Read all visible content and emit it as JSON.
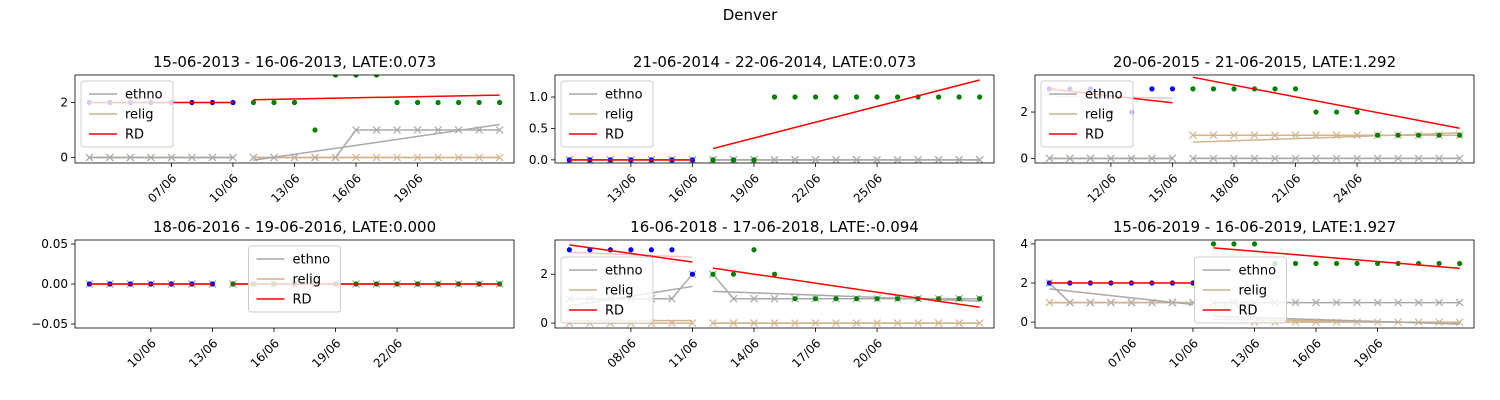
{
  "figure": {
    "title": "Denver"
  },
  "legend_labels": [
    "ethno",
    "relig",
    "RD"
  ],
  "colors": {
    "ethno": "#a9a9a9",
    "relig": "#d2b48c",
    "rd": "#ff0000",
    "pre_dot": "#0000ff",
    "post_dot": "#008000",
    "pink": "#ffc0cb"
  },
  "chart_data": [
    {
      "type": "line",
      "title": "15-06-2013 - 16-06-2013, LATE:0.073",
      "legend": "upper-left",
      "xlim": [
        2.3,
        23.7
      ],
      "ylim": [
        -0.2,
        3.0
      ],
      "x_ticks": [
        {
          "x": 7,
          "label": "07/06"
        },
        {
          "x": 10,
          "label": "10/06"
        },
        {
          "x": 13,
          "label": "13/06"
        },
        {
          "x": 16,
          "label": "16/06"
        },
        {
          "x": 19,
          "label": "19/06"
        }
      ],
      "y_ticks": [
        {
          "y": 0,
          "label": "0"
        },
        {
          "y": 2,
          "label": "2"
        }
      ],
      "x": [
        3,
        4,
        5,
        6,
        7,
        8,
        9,
        10,
        11,
        12,
        13,
        14,
        15,
        16,
        17,
        18,
        19,
        20,
        21,
        22,
        23
      ],
      "cutoff": 10.5,
      "outcome": [
        2,
        2,
        2,
        2,
        2,
        2,
        2,
        2,
        2,
        2,
        2,
        1,
        3,
        3,
        3,
        2,
        2,
        2,
        2,
        2,
        2
      ],
      "ethno": [
        0,
        0,
        0,
        0,
        0,
        0,
        0,
        0,
        0,
        0,
        0,
        0,
        0,
        1,
        1,
        1,
        1,
        1,
        1,
        1,
        1
      ],
      "relig": [
        0,
        0,
        0,
        0,
        0,
        0,
        0,
        0,
        0,
        0,
        0,
        0,
        0,
        0,
        0,
        0,
        0,
        0,
        0,
        0,
        0
      ],
      "rd_pre": [
        2,
        2
      ],
      "rd_post": [
        2.1,
        2.27
      ],
      "ethno_pre": [
        0,
        0
      ],
      "ethno_post": [
        -0.1,
        1.2
      ],
      "relig_pre": [
        0,
        0
      ],
      "relig_post": [
        0,
        0
      ],
      "pink_pre": [
        2.0,
        2.0
      ]
    },
    {
      "type": "line",
      "title": "21-06-2014 - 22-06-2014, LATE:0.073",
      "legend": "upper-left",
      "xlim": [
        9.3,
        30.7
      ],
      "ylim": [
        -0.05,
        1.35
      ],
      "x_ticks": [
        {
          "x": 13,
          "label": "13/06"
        },
        {
          "x": 16,
          "label": "16/06"
        },
        {
          "x": 19,
          "label": "19/06"
        },
        {
          "x": 22,
          "label": "22/06"
        },
        {
          "x": 25,
          "label": "25/06"
        }
      ],
      "y_ticks": [
        {
          "y": 0,
          "label": "0.0"
        },
        {
          "y": 0.5,
          "label": "0.5"
        },
        {
          "y": 1,
          "label": "1.0"
        }
      ],
      "x": [
        10,
        11,
        12,
        13,
        14,
        15,
        16,
        17,
        18,
        19,
        20,
        21,
        22,
        23,
        24,
        25,
        26,
        27,
        28,
        29,
        30
      ],
      "cutoff": 16.5,
      "outcome": [
        0,
        0,
        0,
        0,
        0,
        0,
        0,
        0,
        0,
        0,
        1,
        1,
        1,
        1,
        1,
        1,
        1,
        1,
        1,
        1,
        1
      ],
      "ethno": [
        0,
        0,
        0,
        0,
        0,
        0,
        0,
        0,
        0,
        0,
        0,
        0,
        0,
        0,
        0,
        0,
        0,
        0,
        0,
        0,
        0
      ],
      "relig": [
        0,
        0,
        0,
        0,
        0,
        0,
        0,
        0,
        0,
        0,
        0,
        0,
        0,
        0,
        0,
        0,
        0,
        0,
        0,
        0,
        0
      ],
      "rd_pre": [
        0,
        0
      ],
      "rd_post": [
        0.18,
        1.27
      ],
      "ethno_pre": [
        0,
        0
      ],
      "ethno_post": [
        0,
        0
      ],
      "relig_pre": [
        0,
        0
      ],
      "relig_post": [
        0,
        0
      ],
      "pink_pre": [
        0,
        0
      ]
    },
    {
      "type": "line",
      "title": "20-06-2015 - 21-06-2015, LATE:1.292",
      "legend": "upper-left",
      "xlim": [
        8.3,
        29.7
      ],
      "ylim": [
        -0.2,
        3.6
      ],
      "x_ticks": [
        {
          "x": 12,
          "label": "12/06"
        },
        {
          "x": 15,
          "label": "15/06"
        },
        {
          "x": 18,
          "label": "18/06"
        },
        {
          "x": 21,
          "label": "21/06"
        },
        {
          "x": 24,
          "label": "24/06"
        }
      ],
      "y_ticks": [
        {
          "y": 0,
          "label": "0"
        },
        {
          "y": 2,
          "label": "2"
        }
      ],
      "x": [
        9,
        10,
        11,
        12,
        13,
        14,
        15,
        16,
        17,
        18,
        19,
        20,
        21,
        22,
        23,
        24,
        25,
        26,
        27,
        28,
        29
      ],
      "cutoff": 15.5,
      "outcome": [
        3,
        3,
        3,
        2,
        2,
        3,
        3,
        3,
        3,
        3,
        3,
        3,
        3,
        2,
        2,
        2,
        1,
        1,
        1,
        1,
        1
      ],
      "ethno": [
        0,
        0,
        0,
        0,
        0,
        0,
        0,
        0,
        0,
        0,
        0,
        0,
        0,
        0,
        0,
        0,
        0,
        0,
        0,
        0,
        0
      ],
      "relig": [
        0,
        0,
        0,
        0,
        0,
        0,
        0,
        1,
        1,
        1,
        1,
        1,
        1,
        1,
        1,
        1,
        1,
        1,
        1,
        1,
        1
      ],
      "rd_pre": [
        3.0,
        2.4
      ],
      "rd_post": [
        3.5,
        1.3
      ],
      "ethno_pre": [
        0,
        0
      ],
      "ethno_post": [
        0,
        0
      ],
      "relig_pre": [
        0,
        0
      ],
      "relig_post": [
        0.7,
        1.1
      ],
      "pink_pre": [
        2.7,
        2.6
      ]
    },
    {
      "type": "line",
      "title": "18-06-2016 - 19-06-2016, LATE:0.000",
      "legend": "upper-center",
      "xlim": [
        6.3,
        27.7
      ],
      "ylim": [
        -0.055,
        0.055
      ],
      "x_ticks": [
        {
          "x": 10,
          "label": "10/06"
        },
        {
          "x": 13,
          "label": "13/06"
        },
        {
          "x": 16,
          "label": "16/06"
        },
        {
          "x": 19,
          "label": "19/06"
        },
        {
          "x": 22,
          "label": "22/06"
        }
      ],
      "y_ticks": [
        {
          "y": -0.05,
          "label": "−0.05"
        },
        {
          "y": 0,
          "label": "0.00"
        },
        {
          "y": 0.05,
          "label": "0.05"
        }
      ],
      "x": [
        7,
        8,
        9,
        10,
        11,
        12,
        13,
        14,
        15,
        16,
        17,
        18,
        19,
        20,
        21,
        22,
        23,
        24,
        25,
        26,
        27
      ],
      "cutoff": 13.5,
      "outcome": [
        0,
        0,
        0,
        0,
        0,
        0,
        0,
        0,
        0,
        0,
        0,
        0,
        0,
        0,
        0,
        0,
        0,
        0,
        0,
        0,
        0
      ],
      "ethno": [
        0,
        0,
        0,
        0,
        0,
        0,
        0,
        0,
        0,
        0,
        0,
        0,
        0,
        0,
        0,
        0,
        0,
        0,
        0,
        0,
        0
      ],
      "relig": [
        0,
        0,
        0,
        0,
        0,
        0,
        0,
        0,
        0,
        0,
        0,
        0,
        0,
        0,
        0,
        0,
        0,
        0,
        0,
        0,
        0
      ],
      "rd_pre": [
        0,
        0
      ],
      "rd_post": [
        0,
        0
      ],
      "ethno_pre": [
        0,
        0
      ],
      "ethno_post": [
        0,
        0
      ],
      "relig_pre": [
        0,
        0
      ],
      "relig_post": [
        0,
        0
      ],
      "pink_pre": [
        0,
        0
      ]
    },
    {
      "type": "line",
      "title": "16-06-2018 - 17-06-2018, LATE:-0.094",
      "legend": "center-left",
      "xlim": [
        4.3,
        25.7
      ],
      "ylim": [
        -0.2,
        3.4
      ],
      "x_ticks": [
        {
          "x": 8,
          "label": "08/06"
        },
        {
          "x": 11,
          "label": "11/06"
        },
        {
          "x": 14,
          "label": "14/06"
        },
        {
          "x": 17,
          "label": "17/06"
        },
        {
          "x": 20,
          "label": "20/06"
        }
      ],
      "y_ticks": [
        {
          "y": 0,
          "label": "0"
        },
        {
          "y": 2,
          "label": "2"
        }
      ],
      "x": [
        5,
        6,
        7,
        8,
        9,
        10,
        11,
        12,
        13,
        14,
        15,
        16,
        17,
        18,
        19,
        20,
        21,
        22,
        23,
        24,
        25
      ],
      "cutoff": 11.5,
      "outcome": [
        3,
        3,
        3,
        3,
        3,
        3,
        2,
        2,
        2,
        3,
        2,
        1,
        1,
        1,
        1,
        1,
        1,
        1,
        1,
        1,
        1
      ],
      "ethno": [
        1,
        1,
        1,
        1,
        1,
        1,
        2,
        2,
        1,
        1,
        1,
        1,
        1,
        1,
        1,
        1,
        1,
        1,
        1,
        1,
        1
      ],
      "relig": [
        0,
        0,
        0,
        0,
        0,
        0,
        0,
        0,
        0,
        0,
        0,
        0,
        0,
        0,
        0,
        0,
        0,
        0,
        0,
        0,
        0
      ],
      "rd_pre": [
        3.2,
        2.5
      ],
      "rd_post": [
        2.25,
        0.65
      ],
      "ethno_pre": [
        0.7,
        1.5
      ],
      "ethno_post": [
        1.3,
        0.9
      ],
      "relig_pre": [
        0.1,
        0.1
      ],
      "relig_post": [
        0,
        0
      ],
      "pink_pre": [
        2.9,
        2.7
      ]
    },
    {
      "type": "line",
      "title": "15-06-2019 - 16-06-2019, LATE:1.927",
      "legend": "center",
      "xlim": [
        2.3,
        23.7
      ],
      "ylim": [
        -0.3,
        4.2
      ],
      "x_ticks": [
        {
          "x": 7,
          "label": "07/06"
        },
        {
          "x": 10,
          "label": "10/06"
        },
        {
          "x": 13,
          "label": "13/06"
        },
        {
          "x": 16,
          "label": "16/06"
        },
        {
          "x": 19,
          "label": "19/06"
        }
      ],
      "y_ticks": [
        {
          "y": 0,
          "label": "0"
        },
        {
          "y": 2,
          "label": "2"
        },
        {
          "y": 4,
          "label": "4"
        }
      ],
      "x": [
        3,
        4,
        5,
        6,
        7,
        8,
        9,
        10,
        11,
        12,
        13,
        14,
        15,
        16,
        17,
        18,
        19,
        20,
        21,
        22,
        23
      ],
      "cutoff": 10.5,
      "outcome": [
        2,
        2,
        2,
        2,
        2,
        2,
        2,
        2,
        4,
        4,
        4,
        3,
        3,
        3,
        3,
        3,
        3,
        3,
        3,
        3,
        3
      ],
      "ethno": [
        2,
        1,
        1,
        1,
        1,
        1,
        1,
        1,
        1,
        1,
        1,
        1,
        1,
        1,
        1,
        1,
        1,
        1,
        1,
        1,
        1
      ],
      "relig": [
        1,
        1,
        1,
        1,
        1,
        1,
        1,
        1,
        1,
        1,
        0,
        0,
        0,
        0,
        0,
        0,
        0,
        0,
        0,
        0,
        0
      ],
      "rd_pre": [
        2,
        2
      ],
      "rd_post": [
        3.8,
        2.75
      ],
      "ethno_pre": [
        1.7,
        0.9
      ],
      "ethno_post": [
        0.3,
        -0.1
      ],
      "relig_pre": [
        1,
        1
      ],
      "relig_post": [
        0.15,
        -0.05
      ],
      "pink_pre": [
        2.0,
        2.0
      ]
    }
  ]
}
